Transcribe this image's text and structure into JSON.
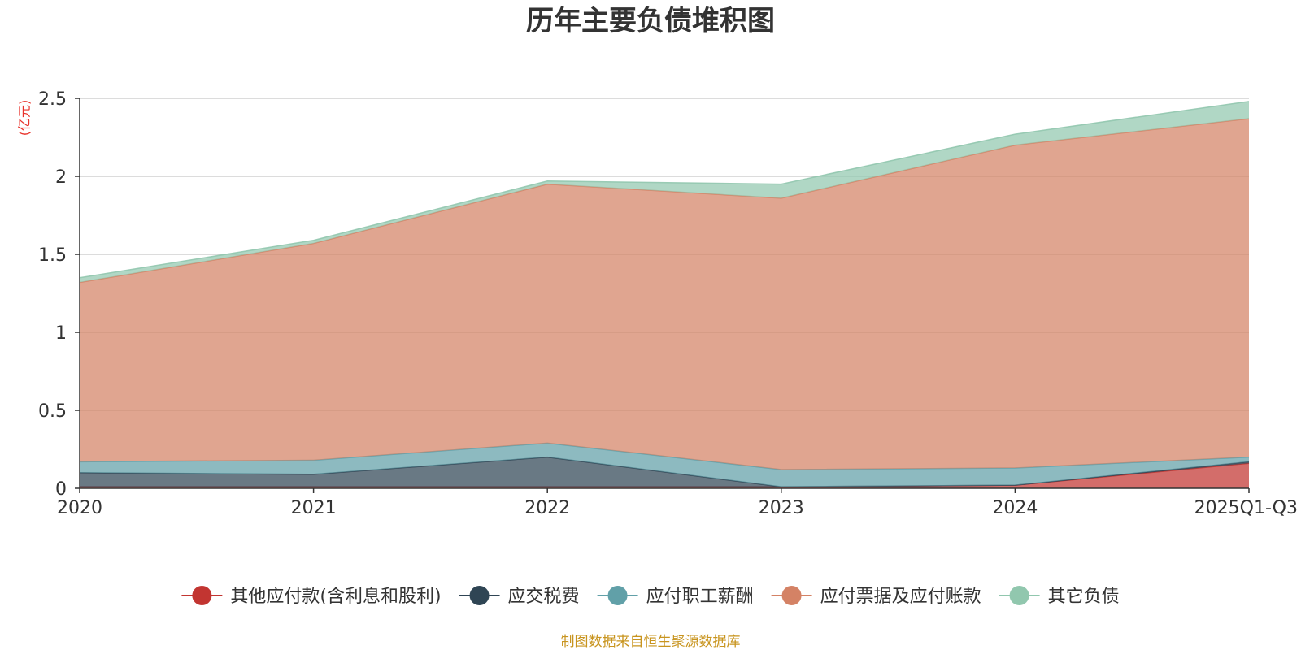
{
  "chart_data": {
    "type": "area",
    "stacked": true,
    "title": "历年主要负债堆积图",
    "y_unit": "(亿元)",
    "categories": [
      "2020",
      "2021",
      "2022",
      "2023",
      "2024",
      "2025Q1-Q3"
    ],
    "y_ticks": [
      "0",
      "0.5",
      "1",
      "1.5",
      "2",
      "2.5"
    ],
    "ylim": [
      0,
      2.5
    ],
    "grid": true,
    "legend_position": "bottom",
    "series": [
      {
        "name": "其他应付款(含利息和股利)",
        "color": "#c23531",
        "values": [
          0.01,
          0.01,
          0.01,
          0.01,
          0.02,
          0.16
        ]
      },
      {
        "name": "应交税费",
        "color": "#2f4554",
        "values": [
          0.09,
          0.08,
          0.19,
          0.0,
          0.0,
          0.01
        ]
      },
      {
        "name": "应付职工薪酬",
        "color": "#61a0a8",
        "values": [
          0.07,
          0.09,
          0.09,
          0.11,
          0.11,
          0.03
        ]
      },
      {
        "name": "应付票据及应付账款",
        "color": "#d48265",
        "values": [
          1.15,
          1.39,
          1.66,
          1.74,
          2.07,
          2.17
        ]
      },
      {
        "name": "其它负债",
        "color": "#91c7ae",
        "values": [
          0.03,
          0.02,
          0.02,
          0.09,
          0.07,
          0.11
        ]
      }
    ],
    "source_note": "制图数据来自恒生聚源数据库"
  }
}
